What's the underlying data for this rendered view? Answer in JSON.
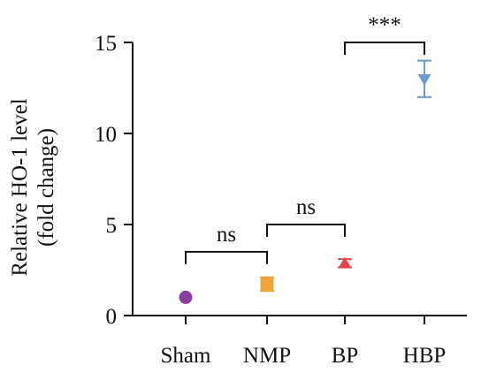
{
  "chart_data": {
    "type": "scatter",
    "ylabel_lines": [
      "Relative HO-1 level",
      "(fold change)"
    ],
    "ylim": [
      0,
      15
    ],
    "yticks": [
      "0",
      "5",
      "10",
      "15"
    ],
    "grid": false,
    "categories": [
      "Sham",
      "NMP",
      "BP",
      "HBP"
    ],
    "points": [
      {
        "category": "Sham",
        "mean": 1.0,
        "err_low": 1.0,
        "err_high": 1.0,
        "marker": "circle",
        "color": "#8a3f9e"
      },
      {
        "category": "NMP",
        "mean": 1.75,
        "err_low": 1.35,
        "err_high": 2.1,
        "marker": "square",
        "color": "#f2a33a"
      },
      {
        "category": "BP",
        "mean": 2.85,
        "err_low": 2.65,
        "err_high": 3.1,
        "marker": "triangle-up",
        "color": "#e8434b"
      },
      {
        "category": "HBP",
        "mean": 13.0,
        "err_low": 12.0,
        "err_high": 14.0,
        "marker": "triangle-down",
        "color": "#6b9bd1"
      }
    ],
    "annotations": [
      {
        "from": "Sham",
        "to": "NMP",
        "label": "ns",
        "level": 3.5
      },
      {
        "from": "NMP",
        "to": "BP",
        "label": "ns",
        "level": 5.0
      },
      {
        "from": "BP",
        "to": "HBP",
        "label": "***",
        "level": 15.0
      }
    ]
  }
}
